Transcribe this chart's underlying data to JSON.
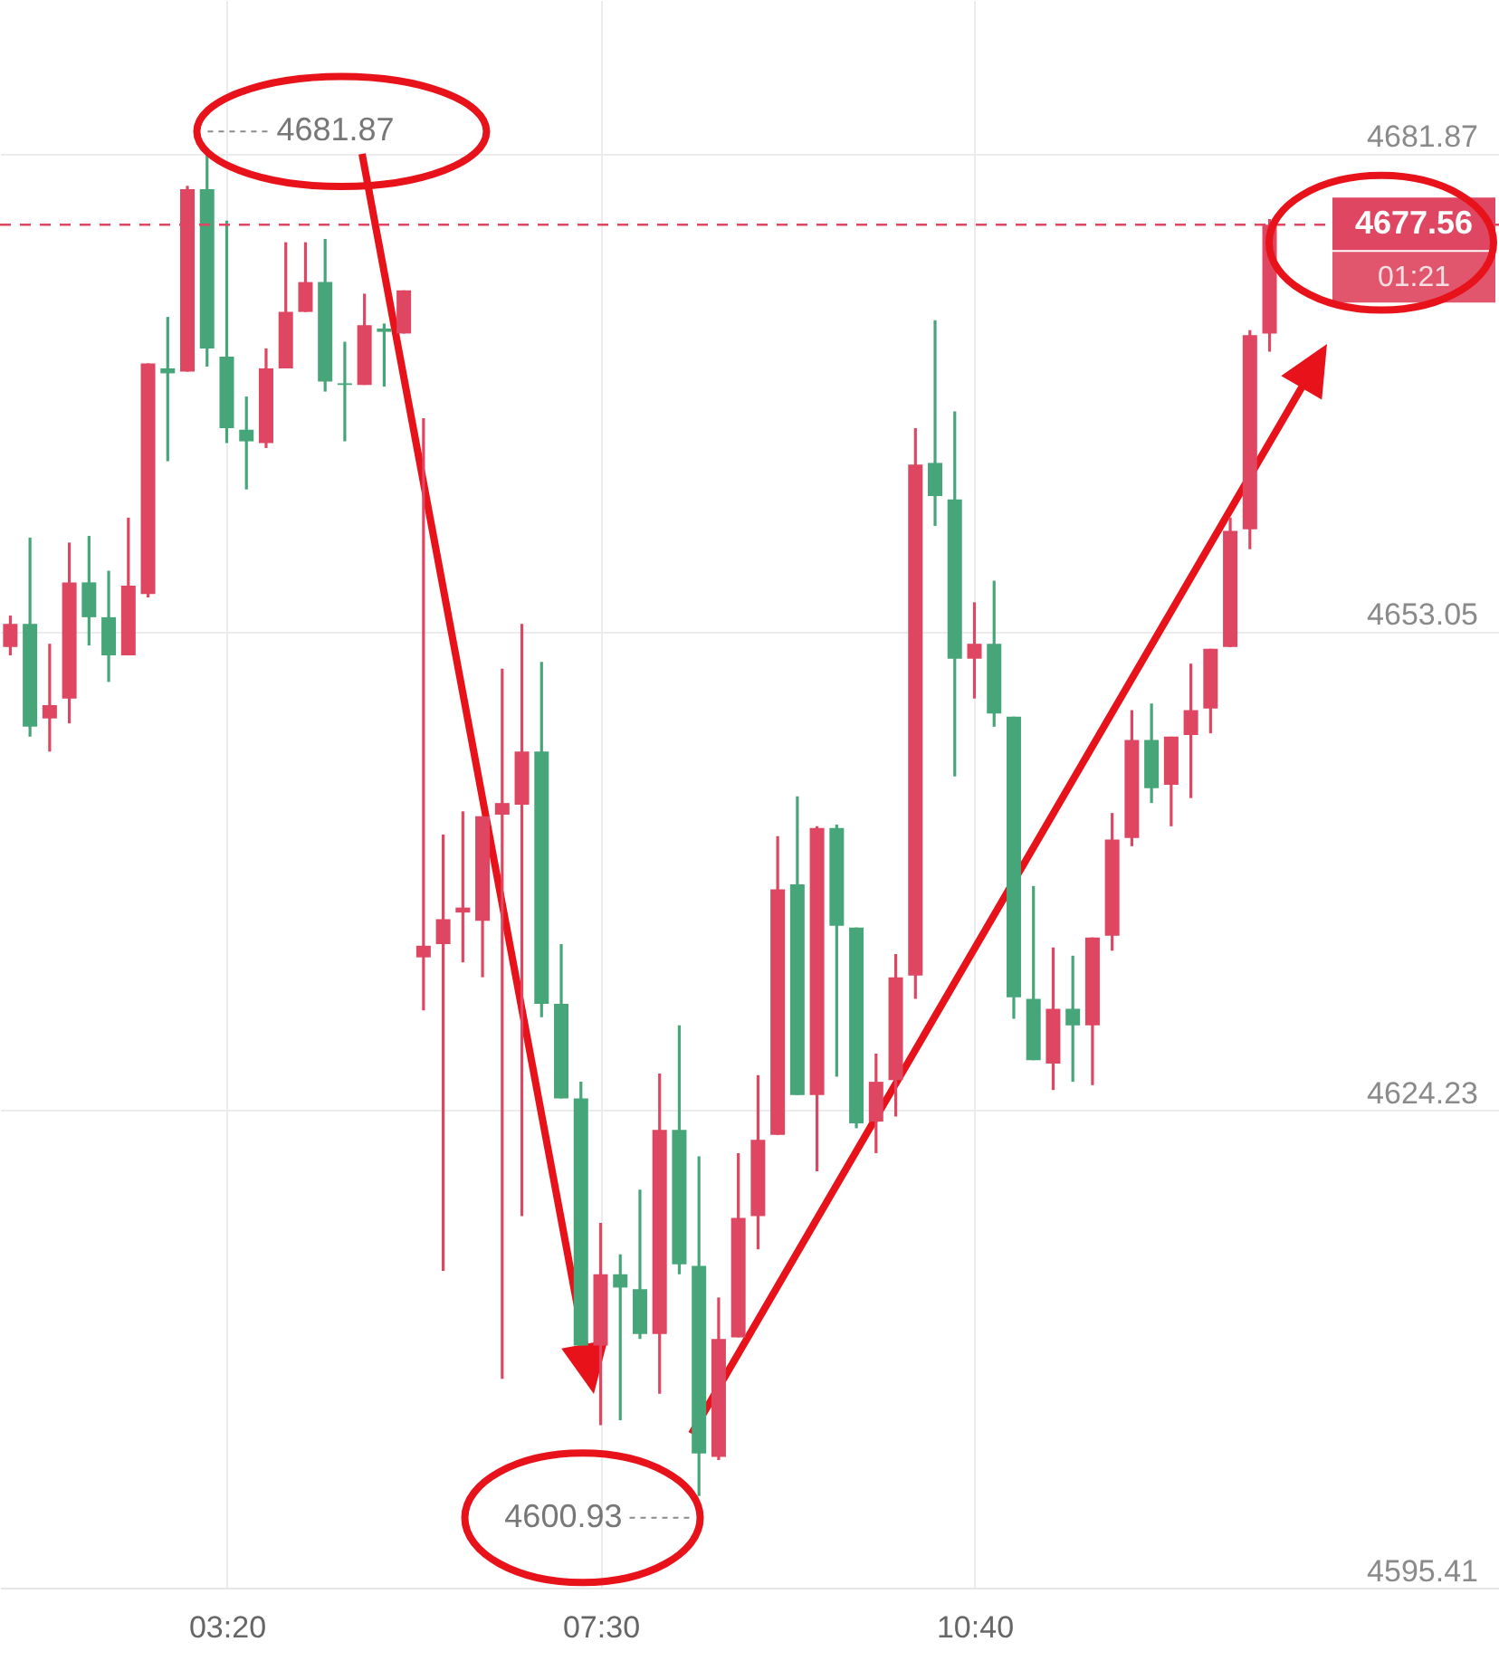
{
  "chart_data": {
    "type": "candlestick",
    "categories": [
      null,
      null,
      null,
      null,
      null,
      null,
      null,
      null,
      null,
      null,
      null,
      "03:20",
      null,
      null,
      null,
      null,
      null,
      null,
      null,
      null,
      null,
      null,
      null,
      null,
      null,
      null,
      null,
      null,
      null,
      null,
      "07:30",
      null,
      null,
      null,
      null,
      null,
      null,
      null,
      null,
      null,
      null,
      null,
      null,
      null,
      null,
      null,
      null,
      null,
      null,
      "10:40",
      null,
      null,
      null,
      null,
      null,
      null,
      null,
      null,
      null,
      null,
      null,
      null,
      null,
      null,
      null
    ],
    "ohlc": [
      [
        4652.1,
        4654.0,
        4651.6,
        4653.5
      ],
      [
        4653.5,
        4658.7,
        4646.7,
        4647.3
      ],
      [
        4647.8,
        4652.3,
        4645.8,
        4648.6
      ],
      [
        4649.0,
        4658.4,
        4647.5,
        4656.0
      ],
      [
        4656.0,
        4658.8,
        4652.2,
        4653.9
      ],
      [
        4653.9,
        4656.7,
        4650.0,
        4651.6
      ],
      [
        4651.6,
        4659.9,
        4651.6,
        4655.8
      ],
      [
        4655.3,
        4669.2,
        4655.1,
        4669.2
      ],
      [
        4668.9,
        4672.0,
        4663.3,
        4668.6
      ],
      [
        4668.7,
        4679.9,
        4668.7,
        4679.7
      ],
      [
        4679.7,
        4681.87,
        4669.0,
        4670.1
      ],
      [
        4669.6,
        4677.8,
        4664.4,
        4665.3
      ],
      [
        4665.2,
        4667.2,
        4661.6,
        4664.5
      ],
      [
        4664.4,
        4670.1,
        4664.1,
        4668.9
      ],
      [
        4668.9,
        4676.5,
        4668.9,
        4672.3
      ],
      [
        4672.3,
        4676.5,
        4672.3,
        4674.1
      ],
      [
        4674.1,
        4676.7,
        4667.5,
        4668.1
      ],
      [
        4668.0,
        4670.5,
        4664.5,
        4667.9
      ],
      [
        4667.9,
        4673.4,
        4667.9,
        4671.5
      ],
      [
        4671.3,
        4671.6,
        4667.8,
        4671.1
      ],
      [
        4671.0,
        4673.6,
        4671.0,
        4673.6
      ],
      [
        4633.4,
        4665.9,
        4630.2,
        4634.1
      ],
      [
        4634.2,
        4640.8,
        4614.5,
        4635.7
      ],
      [
        4636.1,
        4642.2,
        4633.1,
        4636.4
      ],
      [
        4635.6,
        4641.9,
        4632.2,
        4641.9
      ],
      [
        4642.0,
        4650.8,
        4608.0,
        4642.7
      ],
      [
        4642.6,
        4653.5,
        4617.8,
        4645.8
      ],
      [
        4645.8,
        4651.2,
        4629.8,
        4630.6
      ],
      [
        4630.6,
        4634.2,
        4624.9,
        4624.9
      ],
      [
        4624.9,
        4625.9,
        4610.0,
        4610.0
      ],
      [
        4610.0,
        4617.4,
        4605.2,
        4614.3
      ],
      [
        4614.3,
        4615.5,
        4605.5,
        4613.5
      ],
      [
        4613.4,
        4619.4,
        4610.4,
        4610.7
      ],
      [
        4610.7,
        4626.4,
        4607.1,
        4623.0
      ],
      [
        4623.0,
        4629.3,
        4614.3,
        4614.9
      ],
      [
        4614.8,
        4621.4,
        4600.93,
        4603.5
      ],
      [
        4603.3,
        4612.9,
        4603.1,
        4610.4
      ],
      [
        4610.5,
        4621.6,
        4610.5,
        4617.7
      ],
      [
        4617.8,
        4626.3,
        4615.8,
        4622.4
      ],
      [
        4622.7,
        4640.7,
        4622.7,
        4637.5
      ],
      [
        4637.8,
        4643.1,
        4625.1,
        4625.1
      ],
      [
        4625.1,
        4641.3,
        4620.5,
        4641.2
      ],
      [
        4641.2,
        4641.4,
        4626.2,
        4635.3
      ],
      [
        4635.2,
        4635.2,
        4623.1,
        4623.4
      ],
      [
        4623.5,
        4627.6,
        4621.6,
        4625.9
      ],
      [
        4626.0,
        4633.6,
        4623.8,
        4632.2
      ],
      [
        4632.3,
        4665.3,
        4630.9,
        4663.1
      ],
      [
        4663.2,
        4671.8,
        4659.4,
        4661.2
      ],
      [
        4661.0,
        4666.3,
        4644.3,
        4651.4
      ],
      [
        4651.4,
        4654.8,
        4649.0,
        4652.3
      ],
      [
        4652.3,
        4656.1,
        4647.3,
        4648.1
      ],
      [
        4647.9,
        4647.9,
        4629.7,
        4631.0
      ],
      [
        4630.9,
        4637.7,
        4627.2,
        4627.2
      ],
      [
        4627.0,
        4634.0,
        4625.4,
        4630.3
      ],
      [
        4630.3,
        4633.5,
        4625.9,
        4629.3
      ],
      [
        4629.3,
        4634.6,
        4625.7,
        4634.6
      ],
      [
        4634.7,
        4642.1,
        4633.8,
        4640.5
      ],
      [
        4640.6,
        4648.3,
        4640.1,
        4646.5
      ],
      [
        4646.5,
        4648.7,
        4642.7,
        4643.6
      ],
      [
        4643.8,
        4646.7,
        4641.3,
        4646.7
      ],
      [
        4646.8,
        4651.1,
        4643.0,
        4648.3
      ],
      [
        4648.4,
        4652.0,
        4646.9,
        4652.0
      ],
      [
        4652.1,
        4659.9,
        4652.1,
        4659.1
      ],
      [
        4659.2,
        4671.2,
        4658.0,
        4670.9
      ],
      [
        4671.0,
        4677.9,
        4669.9,
        4677.56
      ]
    ],
    "colors": [
      "#de4661",
      "#46a67a",
      "#de4661",
      "#de4661",
      "#46a67a",
      "#46a67a",
      "#de4661",
      "#de4661",
      "#46a67a",
      "#de4661",
      "#46a67a",
      "#46a67a",
      "#46a67a",
      "#de4661",
      "#de4661",
      "#de4661",
      "#46a67a",
      "#46a67a",
      "#de4661",
      "#46a67a",
      "#de4661",
      "#de4661",
      "#de4661",
      "#de4661",
      "#de4661",
      "#de4661",
      "#de4661",
      "#46a67a",
      "#46a67a",
      "#46a67a",
      "#de4661",
      "#46a67a",
      "#46a67a",
      "#de4661",
      "#46a67a",
      "#46a67a",
      "#de4661",
      "#de4661",
      "#de4661",
      "#de4661",
      "#46a67a",
      "#de4661",
      "#46a67a",
      "#46a67a",
      "#de4661",
      "#de4661",
      "#de4661",
      "#46a67a",
      "#46a67a",
      "#de4661",
      "#46a67a",
      "#46a67a",
      "#46a67a",
      "#de4661",
      "#46a67a",
      "#de4661",
      "#de4661",
      "#de4661",
      "#46a67a",
      "#de4661",
      "#de4661",
      "#de4661",
      "#de4661",
      "#de4661",
      "#de4661"
    ],
    "ylim": [
      4595.41,
      4691.1
    ],
    "yticks": [
      4595.41,
      4624.23,
      4653.05,
      4681.87
    ],
    "grid": true,
    "ref_lines": [
      {
        "axis": "y",
        "value": 4677.56,
        "label": "4677.56",
        "color": "#de4661",
        "line_style": "dashed"
      }
    ],
    "annotations": [
      "4681.87",
      "4600.93",
      "01:21"
    ]
  }
}
